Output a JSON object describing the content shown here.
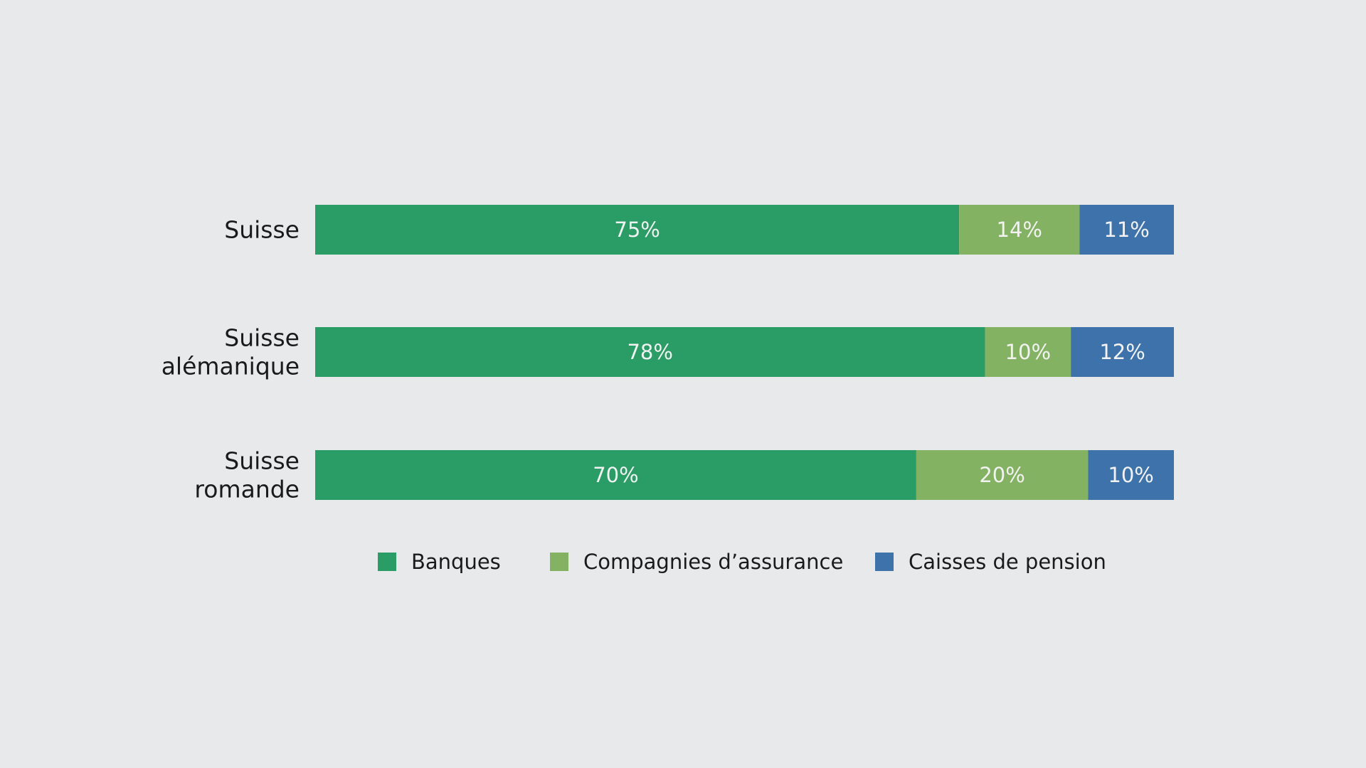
{
  "chart_data": {
    "type": "bar",
    "orientation": "horizontal",
    "stacked": true,
    "title": "",
    "xlabel": "",
    "ylabel": "",
    "xlim": [
      0,
      100
    ],
    "categories": [
      [
        "Suisse"
      ],
      [
        "Suisse",
        "alémanique"
      ],
      [
        "Suisse",
        "romande"
      ]
    ],
    "series": [
      {
        "name": "Banques",
        "color": "#2a9d66",
        "values": [
          75,
          78,
          70
        ],
        "labels": [
          "75%",
          "78%",
          "70%"
        ]
      },
      {
        "name": "Compagnies d’assurance",
        "color": "#84b263",
        "values": [
          14,
          10,
          20
        ],
        "labels": [
          "14%",
          "10%",
          "20%"
        ]
      },
      {
        "name": "Caisses de pension",
        "color": "#3d72ab",
        "values": [
          11,
          12,
          10
        ],
        "labels": [
          "11%",
          "12%",
          "10%"
        ]
      }
    ],
    "legend_position": "bottom",
    "grid": false
  },
  "colors": {
    "background": "#e8e9eb",
    "label_text": "#1a1a1a",
    "segment_text": "#f2f2f2"
  }
}
